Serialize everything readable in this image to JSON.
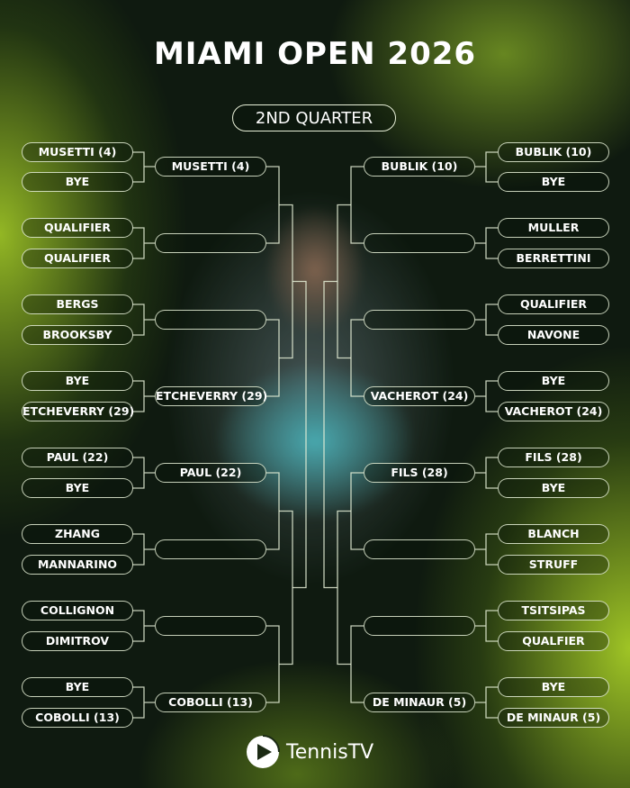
{
  "title": "MIAMI OPEN 2026",
  "quarter": "2ND QUARTER",
  "left": {
    "r1": [
      "MUSETTI (4)",
      "BYE",
      "QUALIFIER",
      "QUALIFIER",
      "BERGS",
      "BROOKSBY",
      "BYE",
      "ETCHEVERRY (29)",
      "PAUL (22)",
      "BYE",
      "ZHANG",
      "MANNARINO",
      "COLLIGNON",
      "DIMITROV",
      "BYE",
      "COBOLLI (13)"
    ],
    "r2": [
      "MUSETTI (4)",
      "",
      "",
      "ETCHEVERRY (29)",
      "PAUL (22)",
      "",
      "",
      "COBOLLI (13)"
    ]
  },
  "right": {
    "r1": [
      "BUBLIK (10)",
      "BYE",
      "MULLER",
      "BERRETTINI",
      "QUALIFIER",
      "NAVONE",
      "BYE",
      "VACHEROT (24)",
      "FILS (28)",
      "BYE",
      "BLANCH",
      "STRUFF",
      "TSITSIPAS",
      "QUALFIER",
      "BYE",
      "DE MINAUR (5)"
    ],
    "r2": [
      "BUBLIK (10)",
      "",
      "",
      "VACHEROT (24)",
      "FILS (28)",
      "",
      "",
      "DE MINAUR (5)"
    ]
  },
  "logo": {
    "text": "TennisTV",
    "icon": "tennis-tv-logo-icon"
  }
}
